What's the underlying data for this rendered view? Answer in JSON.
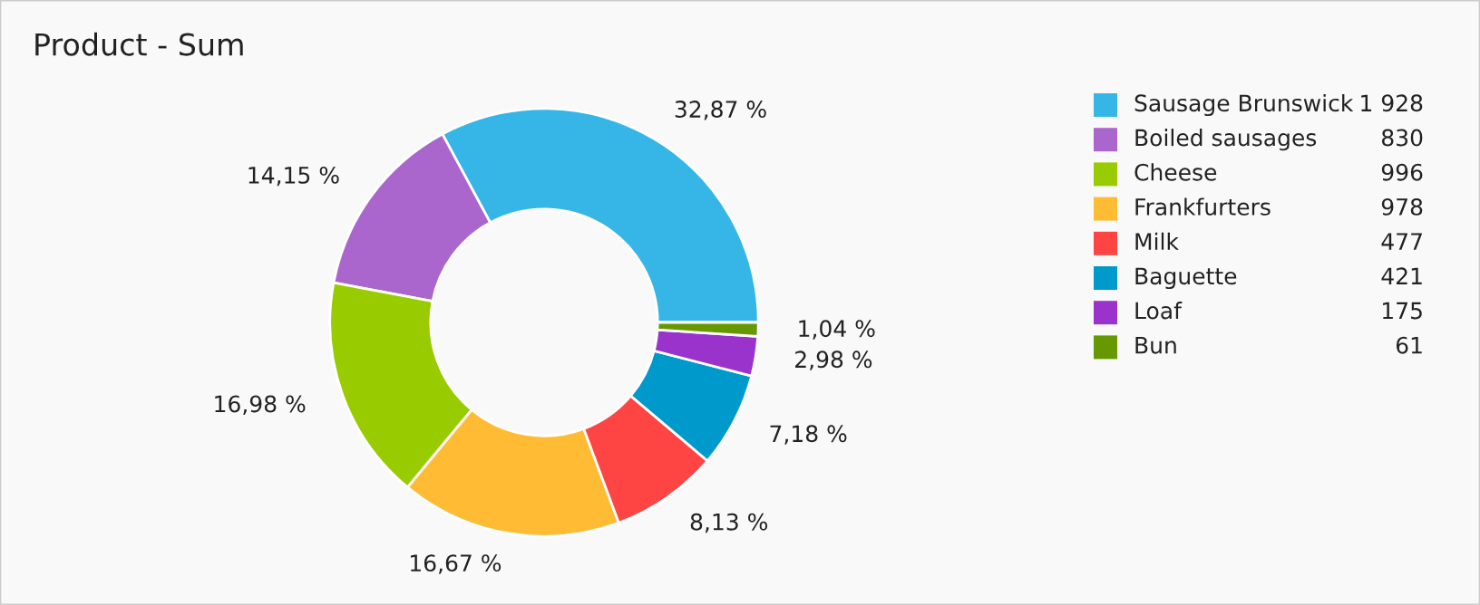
{
  "chart_data": {
    "type": "donut",
    "title": "Product - Sum",
    "categories": [
      "Sausage Brunswick",
      "Boiled sausages",
      "Cheese",
      "Frankfurters",
      "Milk",
      "Baguette",
      "Loaf",
      "Bun"
    ],
    "values": [
      32.87,
      14.15,
      16.98,
      16.67,
      8.13,
      7.18,
      2.98,
      1.04
    ],
    "annotations": [
      "1 928",
      "830",
      "996",
      "978",
      "477",
      "421",
      "175",
      "61"
    ],
    "colors": [
      "#35b6e6",
      "#aa66cc",
      "#99cc00",
      "#ffbb33",
      "#ff4444",
      "#0099cc",
      "#9933cc",
      "#669900"
    ],
    "value_labels": [
      "32,87 %",
      "14,15 %",
      "16,98 %",
      "16,67 %",
      "8,13 %",
      "7,18 %",
      "2,98 %",
      "1,04 %"
    ],
    "legend": "right"
  }
}
